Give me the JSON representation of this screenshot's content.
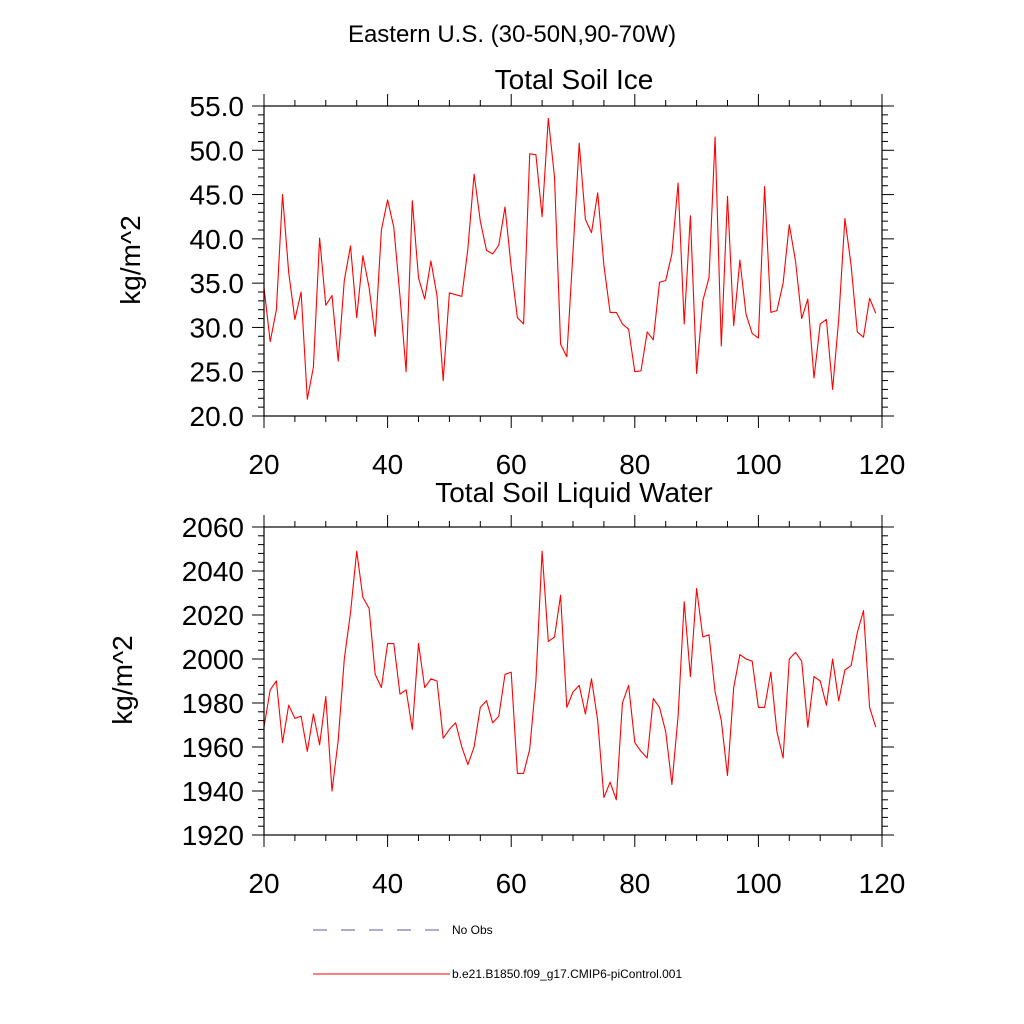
{
  "figure_title": "Eastern U.S. (30-50N,90-70W)",
  "legend": [
    {
      "label": "No Obs",
      "color": "#5a5aa0",
      "dash": "dashed"
    },
    {
      "label": "b.e21.B1850.f09_g17.CMIP6-piControl.001",
      "color": "#ff0000",
      "dash": "solid"
    }
  ],
  "chart_data": [
    {
      "type": "line",
      "title": "Total Soil Ice",
      "xlabel": "",
      "ylabel": "kg/m^2",
      "xlim": [
        20,
        120
      ],
      "ylim": [
        20,
        55
      ],
      "xticks": [
        20,
        40,
        60,
        80,
        100,
        120
      ],
      "xtick_labels": [
        "20",
        "40",
        "60",
        "80",
        "100",
        "120"
      ],
      "yticks": [
        20,
        25,
        30,
        35,
        40,
        45,
        50,
        55
      ],
      "ytick_labels": [
        "20.0",
        "25.0",
        "30.0",
        "35.0",
        "40.0",
        "45.0",
        "50.0",
        "55.0"
      ],
      "series": [
        {
          "name": "b.e21.B1850.f09_g17.CMIP6-piControl.001",
          "color": "#ff0000",
          "x_start": 20,
          "x_step": 1,
          "values": [
            34.5,
            28.4,
            32.0,
            45.0,
            36.2,
            30.9,
            34.0,
            21.9,
            25.5,
            40.1,
            32.5,
            33.6,
            26.2,
            35.3,
            39.2,
            31.1,
            38.1,
            34.5,
            29.0,
            41.0,
            44.4,
            41.3,
            33.5,
            25.0,
            44.3,
            35.6,
            33.2,
            37.5,
            33.6,
            24.0,
            33.9,
            33.7,
            33.5,
            38.9,
            47.3,
            42.0,
            38.7,
            38.3,
            39.3,
            43.6,
            36.8,
            31.1,
            30.4,
            49.6,
            49.5,
            42.5,
            53.6,
            47.0,
            28.1,
            26.7,
            38.5,
            50.8,
            42.2,
            40.7,
            45.2,
            37.0,
            31.7,
            31.7,
            30.4,
            29.8,
            25.0,
            25.1,
            29.5,
            28.6,
            35.1,
            35.3,
            38.3,
            46.3,
            30.4,
            42.6,
            24.8,
            33.0,
            35.6,
            51.5,
            27.9,
            44.8,
            30.2,
            37.6,
            31.5,
            29.3,
            28.8,
            45.9,
            31.7,
            31.9,
            35.0,
            41.6,
            37.5,
            31.0,
            33.2,
            24.3,
            30.4,
            30.9,
            23.0,
            30.9,
            42.3,
            37.0,
            29.5,
            28.9,
            33.3,
            31.6
          ]
        }
      ]
    },
    {
      "type": "line",
      "title": "Total Soil Liquid Water",
      "xlabel": "",
      "ylabel": "kg/m^2",
      "xlim": [
        20,
        120
      ],
      "ylim": [
        1920,
        2060
      ],
      "xticks": [
        20,
        40,
        60,
        80,
        100,
        120
      ],
      "xtick_labels": [
        "20",
        "40",
        "60",
        "80",
        "100",
        "120"
      ],
      "yticks": [
        1920,
        1940,
        1960,
        1980,
        2000,
        2020,
        2040,
        2060
      ],
      "ytick_labels": [
        "1920",
        "1940",
        "1960",
        "1980",
        "2000",
        "2020",
        "2040",
        "2060"
      ],
      "series": [
        {
          "name": "b.e21.B1850.f09_g17.CMIP6-piControl.001",
          "color": "#ff0000",
          "x_start": 20,
          "x_step": 1,
          "values": [
            1969,
            1986,
            1990,
            1962,
            1979,
            1973,
            1974,
            1958,
            1975,
            1961,
            1983,
            1940,
            1963,
            2000,
            2021,
            2049,
            2028,
            2023,
            1993,
            1987,
            2007,
            2007,
            1984,
            1986,
            1968,
            2007,
            1987,
            1991,
            1990,
            1964,
            1968,
            1971,
            1960,
            1952,
            1960,
            1978,
            1981,
            1971,
            1974,
            1993,
            1994,
            1948,
            1948,
            1959,
            1990,
            2049,
            2008,
            2010,
            2029,
            1978,
            1985,
            1988,
            1975,
            1991,
            1972,
            1937,
            1944,
            1936,
            1980,
            1988,
            1962,
            1958,
            1955,
            1982,
            1978,
            1967,
            1943,
            1974,
            2026,
            1992,
            2032,
            2010,
            2011,
            1985,
            1972,
            1947,
            1987,
            2002,
            2000,
            1999,
            1978,
            1978,
            1994,
            1967,
            1955,
            2000,
            2003,
            1999,
            1969,
            1992,
            1990,
            1979,
            2000,
            1981,
            1995,
            1997,
            2012,
            2022,
            1978,
            1969
          ]
        }
      ]
    }
  ]
}
